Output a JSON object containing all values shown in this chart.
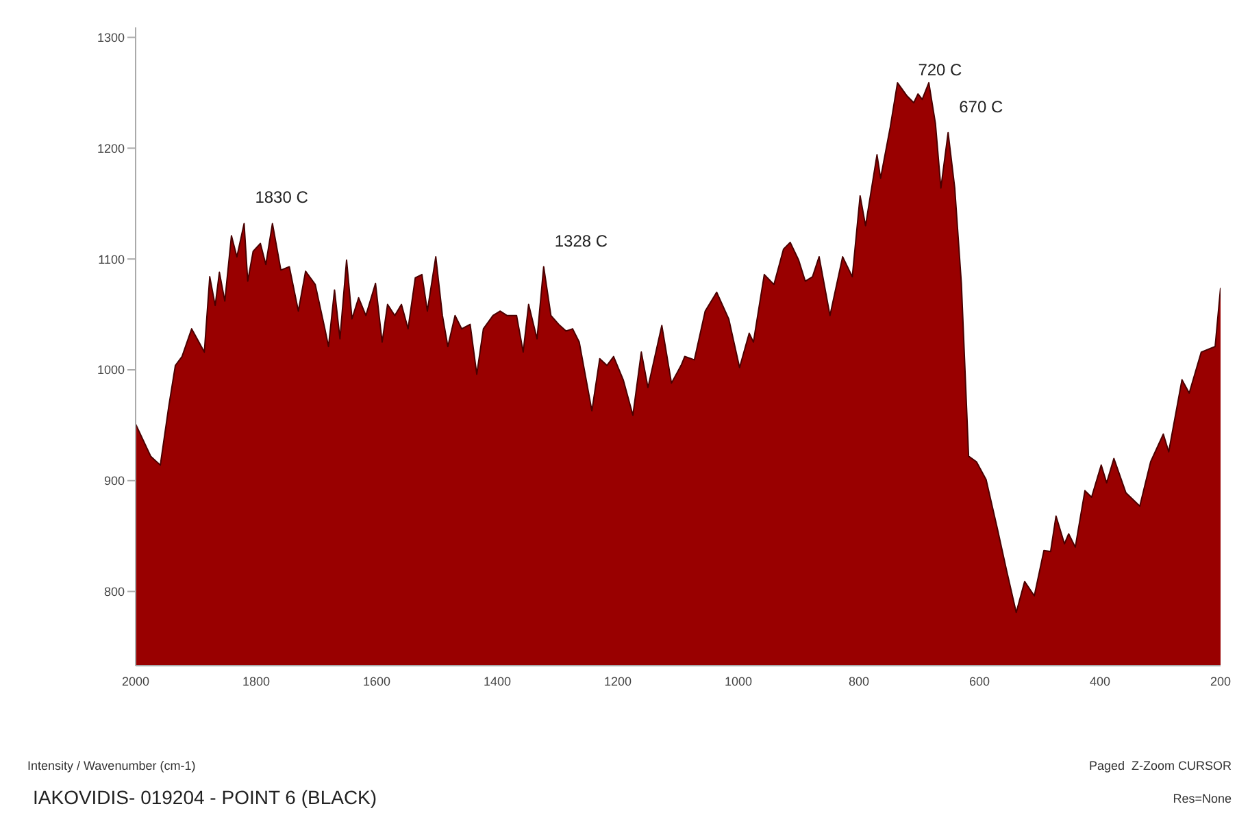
{
  "chart_data": {
    "type": "area",
    "title": "IAKOVIDIS- 019204 - POINT 6 (BLACK)",
    "annotations": [
      "Intensity / Wavenumber (cm-1)",
      "Paged  Z-Zoom CURSOR",
      "Res=None",
      {
        "text": "1830 C",
        "x": 1820,
        "y": 1132
      },
      {
        "text": "1328 C",
        "x": 1323,
        "y": 1093
      },
      {
        "text": "720 C",
        "x": 720,
        "y": 1247
      },
      {
        "text": "670 C",
        "x": 652,
        "y": 1214
      }
    ],
    "xlim": [
      2000,
      200
    ],
    "xticks": [
      2000,
      1800,
      1600,
      1400,
      1200,
      1000,
      800,
      600,
      400,
      200
    ],
    "ylim": [
      733,
      1309
    ],
    "yticks": [
      800,
      900,
      1000,
      1100,
      1200,
      1300
    ],
    "grid": false,
    "x": [
      2000,
      1975,
      1959,
      1945,
      1934,
      1923,
      1907,
      1895,
      1886,
      1877,
      1868,
      1861,
      1852,
      1841,
      1832,
      1820,
      1814,
      1805,
      1793,
      1784,
      1773,
      1759,
      1745,
      1730,
      1718,
      1702,
      1686,
      1680,
      1670,
      1661,
      1650,
      1641,
      1630,
      1618,
      1602,
      1591,
      1582,
      1570,
      1559,
      1548,
      1536,
      1525,
      1516,
      1502,
      1491,
      1482,
      1470,
      1459,
      1445,
      1434,
      1423,
      1407,
      1395,
      1384,
      1368,
      1357,
      1348,
      1334,
      1323,
      1311,
      1298,
      1286,
      1275,
      1264,
      1243,
      1230,
      1218,
      1207,
      1191,
      1175,
      1161,
      1150,
      1127,
      1111,
      1095,
      1089,
      1073,
      1055,
      1036,
      1016,
      998,
      982,
      975,
      957,
      941,
      925,
      914,
      900,
      889,
      877,
      866,
      848,
      827,
      811,
      798,
      789,
      770,
      764,
      748,
      736,
      720,
      709,
      702,
      695,
      684,
      673,
      664,
      652,
      641,
      630,
      618,
      605,
      589,
      570,
      555,
      539,
      525,
      509,
      493,
      482,
      473,
      459,
      452,
      441,
      425,
      414,
      398,
      389,
      377,
      357,
      334,
      316,
      295,
      286,
      264,
      252,
      232,
      209,
      200
    ],
    "series": [
      {
        "color": "#990000",
        "values": [
          951,
          922,
          914,
          967,
          1004,
          1012,
          1037,
          1025,
          1016,
          1084,
          1058,
          1088,
          1062,
          1121,
          1102,
          1132,
          1080,
          1107,
          1114,
          1095,
          1132,
          1090,
          1093,
          1053,
          1089,
          1077,
          1037,
          1021,
          1072,
          1028,
          1099,
          1046,
          1065,
          1049,
          1078,
          1025,
          1059,
          1049,
          1059,
          1037,
          1083,
          1086,
          1053,
          1102,
          1049,
          1021,
          1049,
          1037,
          1041,
          996,
          1037,
          1049,
          1053,
          1049,
          1049,
          1016,
          1059,
          1028,
          1093,
          1049,
          1041,
          1035,
          1037,
          1025,
          963,
          1010,
          1004,
          1012,
          991,
          959,
          1016,
          984,
          1040,
          988,
          1004,
          1012,
          1009,
          1053,
          1070,
          1046,
          1002,
          1033,
          1025,
          1086,
          1077,
          1109,
          1115,
          1099,
          1080,
          1084,
          1102,
          1049,
          1102,
          1084,
          1157,
          1130,
          1194,
          1173,
          1219,
          1259,
          1247,
          1241,
          1249,
          1244,
          1259,
          1222,
          1164,
          1214,
          1164,
          1078,
          922,
          917,
          901,
          856,
          819,
          781,
          809,
          796,
          837,
          836,
          868,
          843,
          852,
          840,
          891,
          885,
          914,
          898,
          920,
          889,
          877,
          917,
          942,
          926,
          991,
          979,
          1016,
          1021,
          1074
        ]
      }
    ]
  }
}
